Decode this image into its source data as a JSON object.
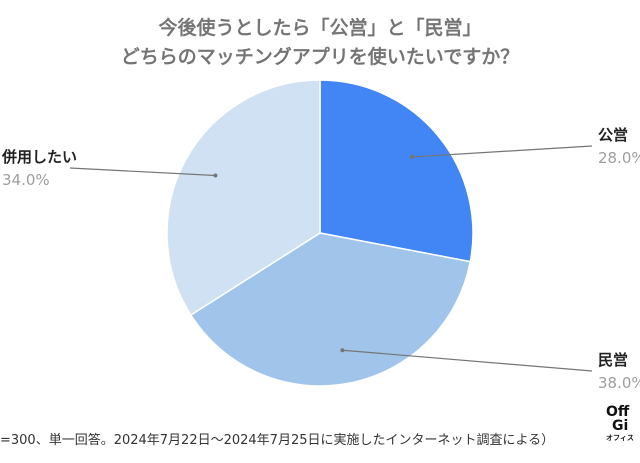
{
  "title": {
    "line1": "今後使うとしたら「公営」と「民営」",
    "line2": "どちらのマッチングアプリを使いたいですか？"
  },
  "chart_data": {
    "type": "pie",
    "slices": [
      {
        "name": "公営",
        "value": 28.0,
        "label": "28.0%",
        "color": "#4285f4"
      },
      {
        "name": "民営",
        "value": 38.0,
        "label": "38.0%",
        "color": "#a0c4ea"
      },
      {
        "name": "併用したい",
        "value": 34.0,
        "label": "34.0%",
        "color": "#cfe1f3"
      }
    ],
    "start": "12 o'clock",
    "direction": "clockwise",
    "labels": "outside with leader lines"
  },
  "footnote": "=300、単一回答。2024年7月22日〜2024年7月25日に実施したインターネット調査による）",
  "logo": {
    "line1": "Off",
    "line2": "Gi",
    "line3": "オフィス"
  }
}
